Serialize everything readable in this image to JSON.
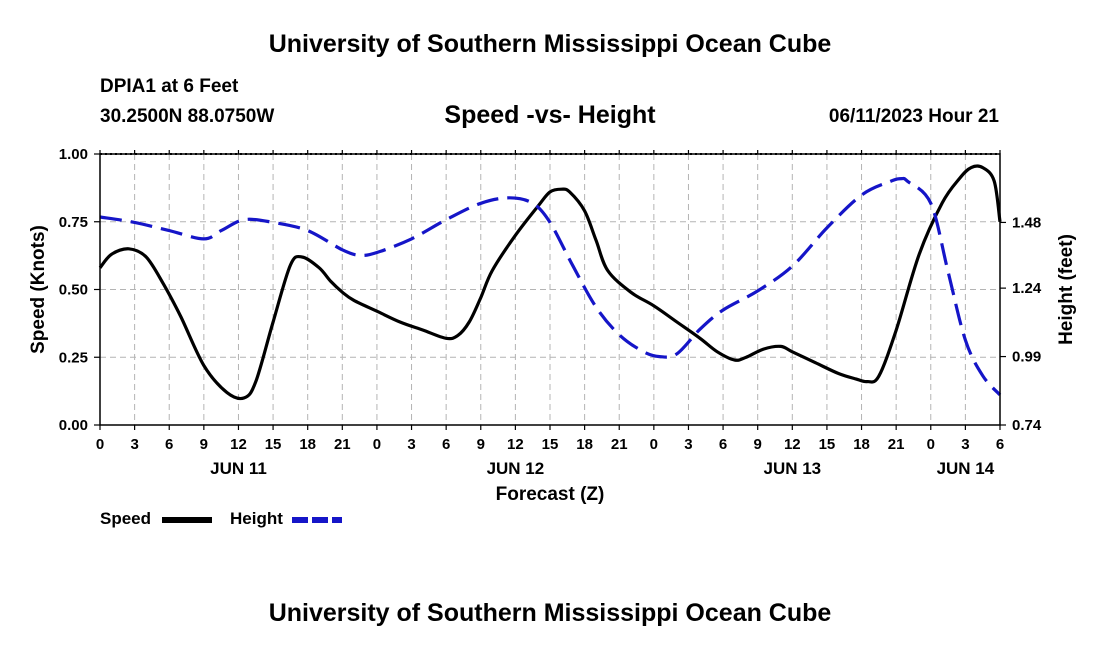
{
  "header": {
    "title": "University of Southern Mississippi Ocean Cube",
    "station": "DPIA1 at 6 Feet",
    "coords": "30.2500N  88.0750W",
    "subtitle": "Speed -vs- Height",
    "datetime": "06/11/2023 Hour 21"
  },
  "footer": {
    "title": "University of Southern Mississippi Ocean Cube"
  },
  "legend": {
    "speed_label": "Speed",
    "height_label": "Height"
  },
  "colors": {
    "speed": "#000000",
    "height": "#1515c8",
    "grid": "#b4b4b4"
  },
  "chart_data": {
    "type": "line",
    "title": "Speed -vs- Height",
    "xlabel": "Forecast (Z)",
    "ylabel": "Speed (Knots)",
    "y2label": "Height (feet)",
    "x_unit": "hours from JUN 11 00Z",
    "xlim": [
      0,
      78
    ],
    "ylim": [
      0,
      1
    ],
    "y2lim": [
      0.74,
      1.73
    ],
    "x_ticks": [
      0,
      3,
      6,
      9,
      12,
      15,
      18,
      21,
      24,
      27,
      30,
      33,
      36,
      39,
      42,
      45,
      48,
      51,
      54,
      57,
      60,
      63,
      66,
      69,
      72,
      75,
      78
    ],
    "x_tick_labels": [
      "0",
      "3",
      "6",
      "9",
      "12",
      "15",
      "18",
      "21",
      "0",
      "3",
      "6",
      "9",
      "12",
      "15",
      "18",
      "21",
      "0",
      "3",
      "6",
      "9",
      "12",
      "15",
      "18",
      "21",
      "0",
      "3",
      "6"
    ],
    "date_labels": [
      {
        "x": 12,
        "label": "JUN 11"
      },
      {
        "x": 36,
        "label": "JUN 12"
      },
      {
        "x": 60,
        "label": "JUN 13"
      },
      {
        "x": 75,
        "label": "JUN 14"
      }
    ],
    "y_ticks": [
      0,
      0.25,
      0.5,
      0.75,
      1
    ],
    "y_tick_labels": [
      "0.00",
      "0.25",
      "0.50",
      "0.75",
      "1.00"
    ],
    "y2_ticks": [
      0.74,
      0.99,
      1.24,
      1.48
    ],
    "y2_tick_labels": [
      "0.74",
      "0.99",
      "1.24",
      "1.48"
    ],
    "series": [
      {
        "name": "Speed",
        "axis": "left",
        "style": "solid",
        "x": [
          0,
          1,
          2.5,
          4,
          5.5,
          7,
          9,
          11,
          12.5,
          13.5,
          15,
          16.5,
          17.5,
          19,
          20,
          21,
          22,
          24,
          26,
          28,
          30,
          31,
          32,
          33,
          34,
          36,
          38,
          39,
          40,
          40.7,
          42,
          43,
          44,
          46,
          48,
          50,
          52,
          53.5,
          55,
          56,
          57.5,
          59,
          60,
          62,
          64,
          65.5,
          66.5,
          67.5,
          69,
          71,
          73,
          74.5,
          75.5,
          76.5,
          77.5,
          78
        ],
        "values": [
          0.58,
          0.63,
          0.65,
          0.62,
          0.52,
          0.4,
          0.22,
          0.12,
          0.1,
          0.16,
          0.38,
          0.59,
          0.62,
          0.58,
          0.53,
          0.49,
          0.46,
          0.42,
          0.38,
          0.35,
          0.32,
          0.33,
          0.38,
          0.47,
          0.57,
          0.7,
          0.81,
          0.86,
          0.87,
          0.86,
          0.79,
          0.68,
          0.57,
          0.49,
          0.44,
          0.38,
          0.32,
          0.27,
          0.24,
          0.25,
          0.28,
          0.29,
          0.27,
          0.23,
          0.19,
          0.17,
          0.16,
          0.18,
          0.35,
          0.63,
          0.82,
          0.91,
          0.95,
          0.95,
          0.9,
          0.75
        ]
      },
      {
        "name": "Height",
        "axis": "right",
        "style": "dashed",
        "x": [
          0,
          3,
          6,
          9,
          10.5,
          12.5,
          15,
          18,
          21,
          22.5,
          24,
          27,
          30,
          33,
          35.5,
          37.5,
          39,
          41,
          43,
          45,
          47,
          48.5,
          50,
          52,
          54,
          57,
          60,
          63,
          66,
          68.5,
          69.5,
          70,
          72,
          73.5,
          75,
          76.5,
          78
        ],
        "values": [
          1.5,
          1.48,
          1.45,
          1.42,
          1.45,
          1.49,
          1.48,
          1.45,
          1.38,
          1.36,
          1.37,
          1.42,
          1.49,
          1.55,
          1.57,
          1.55,
          1.48,
          1.32,
          1.17,
          1.07,
          1.01,
          0.99,
          1.0,
          1.09,
          1.16,
          1.23,
          1.32,
          1.46,
          1.58,
          1.63,
          1.64,
          1.63,
          1.55,
          1.3,
          1.05,
          0.92,
          0.85
        ]
      }
    ]
  }
}
